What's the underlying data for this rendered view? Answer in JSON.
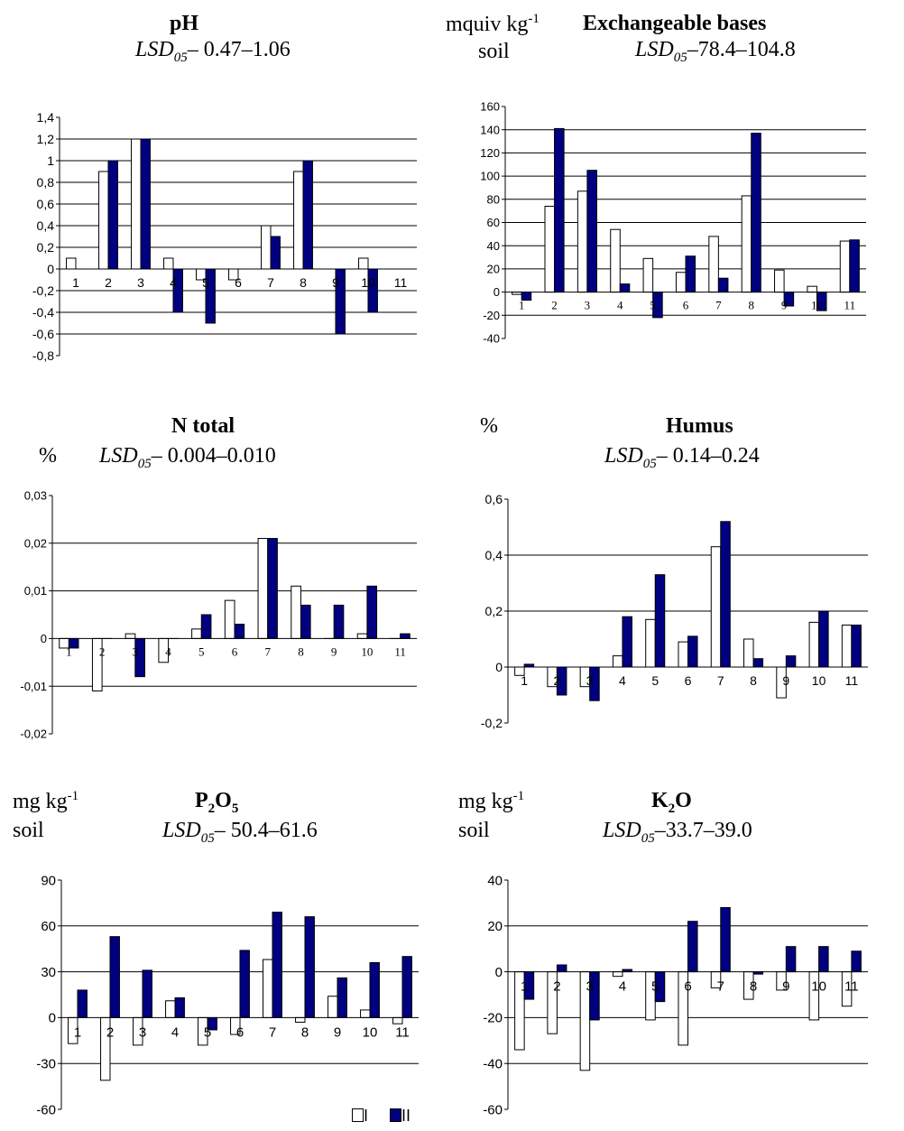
{
  "legend": {
    "series1": "I",
    "series2": "II"
  },
  "headers": {
    "ph": {
      "title": "pH",
      "lsd_label": "LSD",
      "lsd_sub": "05",
      "lsd_value": "– 0.47–1.06"
    },
    "bases": {
      "unit_line1": "mquiv kg",
      "unit_sup": "-1",
      "unit_line2": "soil",
      "title": "Exchangeable bases",
      "lsd_label": "LSD",
      "lsd_sub": "05",
      "lsd_value": "–78.4–104.8"
    },
    "ntotal": {
      "unit": "%",
      "title": "N total",
      "lsd_label": "LSD",
      "lsd_sub": "05",
      "lsd_value": "– 0.004–0.010"
    },
    "humus": {
      "unit": "%",
      "title": "Humus",
      "lsd_label": "LSD",
      "lsd_sub": "05",
      "lsd_value": "– 0.14–0.24"
    },
    "p2o5": {
      "unit_line1": "mg kg",
      "unit_sup": "-1",
      "unit_line2": "soil",
      "title_a": "P",
      "title_sub1": "2",
      "title_b": "O",
      "title_sub2": "5",
      "lsd_label": "LSD",
      "lsd_sub": "05",
      "lsd_value": "– 50.4–61.6"
    },
    "k2o": {
      "unit_line1": "mg kg",
      "unit_sup": "-1",
      "unit_line2": "soil",
      "title_a": "K",
      "title_sub1": "2",
      "title_b": "O",
      "lsd_label": "LSD",
      "lsd_sub": "05",
      "lsd_value": "–33.7–39.0"
    }
  },
  "colors": {
    "series1": "#ffffff",
    "series2": "#000080",
    "grid": "#000000"
  },
  "chart_data": [
    {
      "id": "ph",
      "type": "bar",
      "categories": [
        "1",
        "2",
        "3",
        "4",
        "5",
        "6",
        "7",
        "8",
        "9",
        "10",
        "11"
      ],
      "ylim": [
        -0.8,
        1.4
      ],
      "ticks": [
        1.4,
        1.2,
        1,
        0.8,
        0.6,
        0.4,
        0.2,
        0,
        -0.2,
        -0.4,
        -0.6,
        -0.8
      ],
      "tick_labels": [
        "1,4",
        "1,2",
        "1",
        "0,8",
        "0,6",
        "0,4",
        "0,2",
        "0",
        "-0,2",
        "-0,4",
        "-0,6",
        "-0,8"
      ],
      "gridlines": [
        -0.6,
        -0.4,
        -0.2,
        0.2,
        0.4,
        0.6,
        0.8,
        1,
        1.2
      ],
      "series": [
        {
          "name": "I",
          "values": [
            0.1,
            0.9,
            1.2,
            0.1,
            -0.1,
            -0.1,
            0.4,
            0.9,
            0,
            0.1,
            0
          ]
        },
        {
          "name": "II",
          "values": [
            0,
            1.0,
            1.2,
            -0.4,
            -0.5,
            0,
            0.3,
            1.0,
            -0.6,
            -0.4,
            0
          ]
        }
      ]
    },
    {
      "id": "bases",
      "type": "bar",
      "categories": [
        "1",
        "2",
        "3",
        "4",
        "5",
        "6",
        "7",
        "8",
        "9",
        "10",
        "11"
      ],
      "ylim": [
        -40,
        160
      ],
      "ticks": [
        160,
        140,
        120,
        100,
        80,
        60,
        40,
        20,
        0,
        -20,
        -40
      ],
      "tick_labels": [
        "160",
        "140",
        "120",
        "100",
        "80",
        "60",
        "40",
        "20",
        "0",
        "-20",
        "-40"
      ],
      "gridlines": [
        -20,
        20,
        40,
        60,
        80,
        100,
        120,
        140
      ],
      "series": [
        {
          "name": "I",
          "values": [
            -2,
            74,
            87,
            54,
            29,
            17,
            48,
            83,
            19,
            5,
            44
          ]
        },
        {
          "name": "II",
          "values": [
            -7,
            141,
            105,
            7,
            -22,
            31,
            12,
            137,
            -12,
            -16,
            45
          ]
        }
      ]
    },
    {
      "id": "ntotal",
      "type": "bar",
      "categories": [
        "1",
        "2",
        "3",
        "4",
        "5",
        "6",
        "7",
        "8",
        "9",
        "10",
        "11"
      ],
      "ylim": [
        -0.02,
        0.03
      ],
      "ticks": [
        0.03,
        0.02,
        0.01,
        0,
        -0.01,
        -0.02
      ],
      "tick_labels": [
        "0,03",
        "0,02",
        "0,01",
        "0",
        "-0,01",
        "-0,02"
      ],
      "gridlines": [
        -0.01,
        0.01,
        0.02
      ],
      "series": [
        {
          "name": "I",
          "values": [
            -0.002,
            -0.011,
            0.001,
            -0.005,
            0.002,
            0.008,
            0.021,
            0.011,
            0,
            0.001,
            0
          ]
        },
        {
          "name": "II",
          "values": [
            -0.002,
            0,
            -0.008,
            0,
            0.005,
            0.003,
            0.021,
            0.007,
            0.007,
            0.011,
            0.001
          ]
        }
      ]
    },
    {
      "id": "humus",
      "type": "bar",
      "categories": [
        "1",
        "2",
        "3",
        "4",
        "5",
        "6",
        "7",
        "8",
        "9",
        "10",
        "11"
      ],
      "ylim": [
        -0.2,
        0.6
      ],
      "ticks": [
        0.6,
        0.4,
        0.2,
        0,
        -0.2
      ],
      "tick_labels": [
        "0,6",
        "0,4",
        "0,2",
        "0",
        "-0,2"
      ],
      "gridlines": [
        0.2,
        0.4
      ],
      "series": [
        {
          "name": "I",
          "values": [
            -0.03,
            -0.07,
            -0.07,
            0.04,
            0.17,
            0.09,
            0.43,
            0.1,
            -0.11,
            0.16,
            0.15
          ]
        },
        {
          "name": "II",
          "values": [
            0.01,
            -0.1,
            -0.12,
            0.18,
            0.33,
            0.11,
            0.52,
            0.03,
            0.04,
            0.2,
            0.15
          ]
        }
      ]
    },
    {
      "id": "p2o5",
      "type": "bar",
      "categories": [
        "1",
        "2",
        "3",
        "4",
        "5",
        "6",
        "7",
        "8",
        "9",
        "10",
        "11"
      ],
      "ylim": [
        -60,
        90
      ],
      "ticks": [
        90,
        60,
        30,
        0,
        -30,
        -60
      ],
      "tick_labels": [
        "90",
        "60",
        "30",
        "0",
        "-30",
        "-60"
      ],
      "gridlines": [
        -30,
        30,
        60
      ],
      "series": [
        {
          "name": "I",
          "values": [
            -17,
            -41,
            -18,
            11,
            -18,
            -11,
            38,
            -3,
            14,
            5,
            -4
          ]
        },
        {
          "name": "II",
          "values": [
            18,
            53,
            31,
            13,
            -8,
            44,
            69,
            66,
            26,
            36,
            40
          ]
        }
      ]
    },
    {
      "id": "k2o",
      "type": "bar",
      "categories": [
        "1",
        "2",
        "3",
        "4",
        "5",
        "6",
        "7",
        "8",
        "9",
        "10",
        "11"
      ],
      "ylim": [
        -60,
        40
      ],
      "ticks": [
        40,
        20,
        0,
        -20,
        -40,
        -60
      ],
      "tick_labels": [
        "40",
        "20",
        "0",
        "-20",
        "-40",
        "-60"
      ],
      "gridlines": [
        -40,
        -20,
        20
      ],
      "series": [
        {
          "name": "I",
          "values": [
            -34,
            -27,
            -43,
            -2,
            -21,
            -32,
            -7,
            -12,
            -8,
            -21,
            -15
          ]
        },
        {
          "name": "II",
          "values": [
            -12,
            3,
            -21,
            1,
            -13,
            22,
            28,
            -1,
            11,
            11,
            9
          ]
        }
      ]
    }
  ]
}
